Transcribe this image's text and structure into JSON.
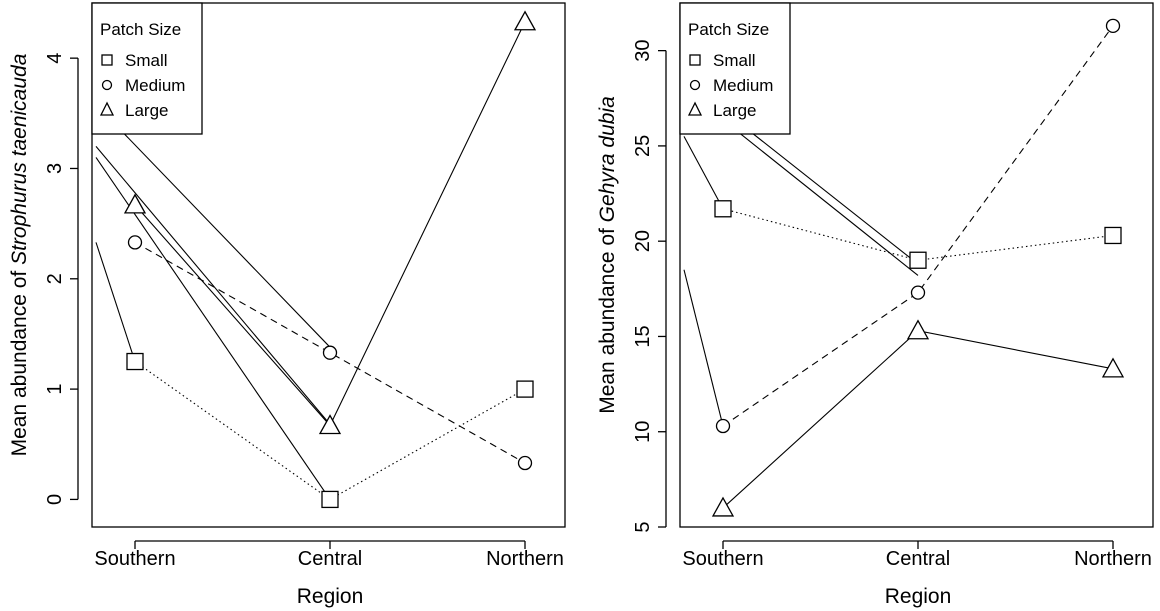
{
  "chart_data": [
    {
      "type": "line",
      "xlabel": "Region",
      "ylabel": {
        "prefix": "Mean abundance of",
        "species": "Strophurus taenicauda"
      },
      "categories": [
        "Southern",
        "Central",
        "Northern"
      ],
      "ylim": [
        -0.25,
        4.5
      ],
      "yticks": [
        0,
        1,
        2,
        3,
        4
      ],
      "legend": {
        "title": "Patch Size",
        "position": "top-left"
      },
      "series": [
        {
          "name": "Small",
          "marker": "square",
          "dash": "dotted",
          "values": [
            1.25,
            0.0,
            1.0
          ]
        },
        {
          "name": "Medium",
          "marker": "circle",
          "dash": "dashed",
          "values": [
            2.33,
            1.33,
            0.33
          ]
        },
        {
          "name": "Large",
          "marker": "triangle",
          "dash": "solid",
          "values": [
            2.67,
            0.67,
            4.33
          ]
        }
      ],
      "extra_lines": [
        {
          "from": [
            -0.2,
            3.58
          ],
          "to": [
            1.0,
            1.38
          ]
        },
        {
          "from": [
            -0.2,
            3.2
          ],
          "to": [
            1.0,
            0.68
          ]
        },
        {
          "from": [
            -0.2,
            3.1
          ],
          "to": [
            1.0,
            0.0
          ]
        },
        {
          "from": [
            -0.2,
            2.33
          ],
          "to": [
            0.0,
            1.25
          ]
        }
      ]
    },
    {
      "type": "line",
      "xlabel": "Region",
      "ylabel": {
        "prefix": "Mean abundance of",
        "species": "Gehyra dubia"
      },
      "categories": [
        "Southern",
        "Central",
        "Northern"
      ],
      "ylim": [
        5,
        32.5
      ],
      "yticks": [
        5,
        10,
        15,
        20,
        25,
        30
      ],
      "legend": {
        "title": "Patch Size",
        "position": "top-left"
      },
      "series": [
        {
          "name": "Small",
          "marker": "square",
          "dash": "dotted",
          "values": [
            21.7,
            19.0,
            20.3
          ]
        },
        {
          "name": "Medium",
          "marker": "circle",
          "dash": "dashed",
          "values": [
            10.3,
            17.3,
            31.3
          ]
        },
        {
          "name": "Large",
          "marker": "triangle",
          "dash": "solid",
          "values": [
            6.0,
            15.3,
            13.3
          ]
        }
      ],
      "extra_lines": [
        {
          "from": [
            -0.2,
            28.5
          ],
          "to": [
            1.0,
            18.8
          ]
        },
        {
          "from": [
            -0.2,
            28.0
          ],
          "to": [
            1.0,
            18.2
          ]
        },
        {
          "from": [
            -0.2,
            25.5
          ],
          "to": [
            0.0,
            21.7
          ]
        },
        {
          "from": [
            -0.2,
            18.5
          ],
          "to": [
            0.0,
            10.3
          ]
        }
      ]
    }
  ]
}
